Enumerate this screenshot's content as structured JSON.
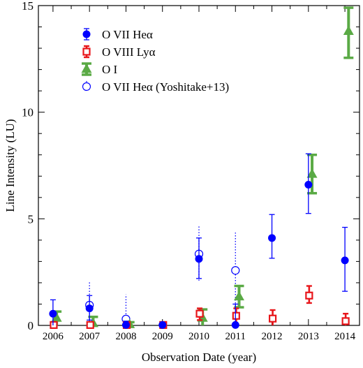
{
  "chart_data": {
    "type": "scatter",
    "xlabel": "Observation Date (year)",
    "ylabel": "Line Intensity (LU)",
    "xlim": [
      2005.6,
      2014.4
    ],
    "ylim": [
      0,
      15
    ],
    "x_ticks": [
      2006,
      2007,
      2008,
      2009,
      2010,
      2011,
      2012,
      2013,
      2014
    ],
    "y_ticks": [
      0,
      5,
      10,
      15
    ],
    "legend_position": "top-left",
    "series": [
      {
        "name": "O VII Heα",
        "marker": "filled-circle",
        "color": "#0000ff",
        "error_style": "solid",
        "points": [
          {
            "x": 2006.0,
            "y": 0.55,
            "lo": 0.0,
            "hi": 1.2
          },
          {
            "x": 2007.0,
            "y": 0.8,
            "lo": 0.25,
            "hi": 1.4
          },
          {
            "x": 2008.0,
            "y": 0.02,
            "lo": 0.0,
            "hi": 0.2
          },
          {
            "x": 2009.0,
            "y": 0.02,
            "lo": 0.0,
            "hi": 0.05
          },
          {
            "x": 2010.0,
            "y": 3.12,
            "lo": 2.2,
            "hi": 4.1
          },
          {
            "x": 2011.0,
            "y": 0.02,
            "lo": 0.0,
            "hi": 1.0
          },
          {
            "x": 2012.0,
            "y": 4.1,
            "lo": 3.15,
            "hi": 5.2
          },
          {
            "x": 2013.0,
            "y": 6.6,
            "lo": 5.25,
            "hi": 8.05
          },
          {
            "x": 2014.0,
            "y": 3.05,
            "lo": 1.6,
            "hi": 4.6
          }
        ]
      },
      {
        "name": "O VIII Lyα",
        "marker": "open-square",
        "color": "#e8161b",
        "error_style": "solid",
        "points": [
          {
            "x": 2006.02,
            "y": 0.02,
            "lo": 0.0,
            "hi": 0.15
          },
          {
            "x": 2007.02,
            "y": 0.02,
            "lo": 0.0,
            "hi": 0.15
          },
          {
            "x": 2008.02,
            "y": 0.02,
            "lo": 0.0,
            "hi": 0.15
          },
          {
            "x": 2009.02,
            "y": 0.02,
            "lo": 0.0,
            "hi": 0.05
          },
          {
            "x": 2010.02,
            "y": 0.55,
            "lo": 0.25,
            "hi": 0.8
          },
          {
            "x": 2011.02,
            "y": 0.45,
            "lo": 0.05,
            "hi": 0.8
          },
          {
            "x": 2012.02,
            "y": 0.32,
            "lo": 0.0,
            "hi": 0.72
          },
          {
            "x": 2013.02,
            "y": 1.4,
            "lo": 1.05,
            "hi": 1.85
          },
          {
            "x": 2014.02,
            "y": 0.2,
            "lo": 0.0,
            "hi": 0.55
          }
        ]
      },
      {
        "name": "O I",
        "marker": "filled-triangle",
        "color": "#5aaa45",
        "error_style": "solid",
        "points": [
          {
            "x": 2006.1,
            "y": 0.35,
            "lo": 0.0,
            "hi": 0.65
          },
          {
            "x": 2007.1,
            "y": 0.1,
            "lo": 0.0,
            "hi": 0.4
          },
          {
            "x": 2008.1,
            "y": 0.05,
            "lo": 0.0,
            "hi": 0.15
          },
          {
            "x": 2010.1,
            "y": 0.35,
            "lo": 0.0,
            "hi": 0.75
          },
          {
            "x": 2011.1,
            "y": 1.35,
            "lo": 0.85,
            "hi": 1.85
          },
          {
            "x": 2013.1,
            "y": 7.1,
            "lo": 6.2,
            "hi": 8.0
          },
          {
            "x": 2014.1,
            "y": 13.8,
            "lo": 12.55,
            "hi": 14.9
          }
        ]
      },
      {
        "name": "O VII Heα (Yoshitake+13)",
        "marker": "open-circle",
        "color": "#0000ff",
        "error_style": "dotted",
        "points": [
          {
            "x": 2007.0,
            "y": 0.95,
            "lo": 0.0,
            "hi": 2.05
          },
          {
            "x": 2008.0,
            "y": 0.3,
            "lo": 0.0,
            "hi": 1.45
          },
          {
            "x": 2010.0,
            "y": 3.35,
            "lo": 2.1,
            "hi": 4.7
          },
          {
            "x": 2011.0,
            "y": 2.58,
            "lo": 0.9,
            "hi": 4.35
          }
        ]
      }
    ]
  }
}
